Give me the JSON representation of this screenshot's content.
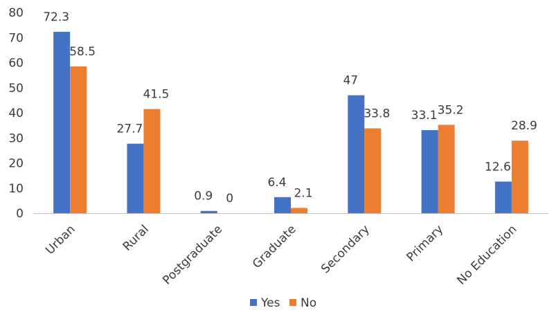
{
  "chart_data": {
    "type": "bar",
    "title": "",
    "xlabel": "",
    "ylabel": "",
    "ylim": [
      0,
      80
    ],
    "yticks": [
      0,
      10,
      20,
      30,
      40,
      50,
      60,
      70,
      80
    ],
    "grid": false,
    "legend_position": "bottom",
    "categories": [
      "Urban",
      "Rural",
      "Postgraduate",
      "Graduate",
      "Secondary",
      "Primary",
      "No Education"
    ],
    "series": [
      {
        "name": "Yes",
        "color": "#4472C4",
        "values": [
          72.3,
          27.7,
          0.9,
          6.4,
          47,
          33.1,
          12.6
        ]
      },
      {
        "name": "No",
        "color": "#ED7D31",
        "values": [
          58.5,
          41.5,
          0,
          2.1,
          33.8,
          35.2,
          28.9
        ]
      }
    ]
  }
}
